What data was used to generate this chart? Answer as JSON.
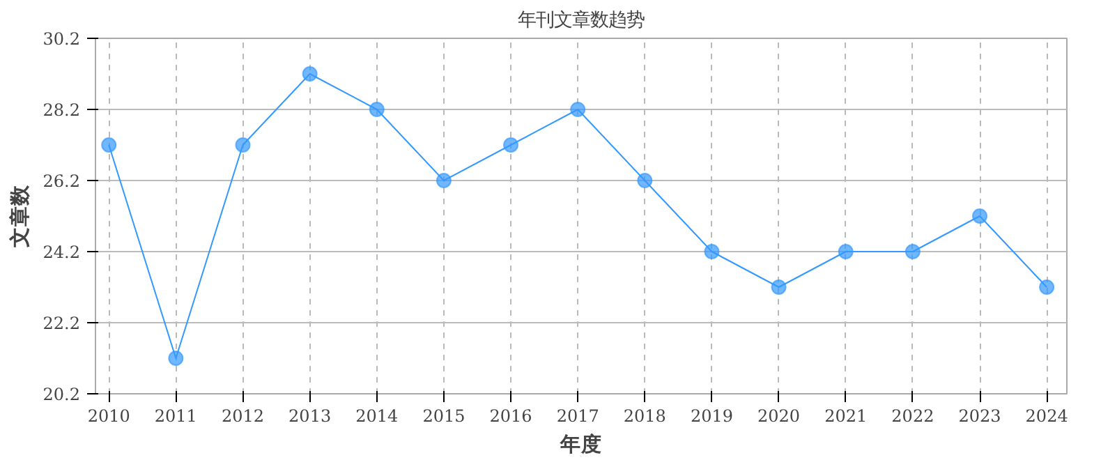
{
  "chart_data": {
    "type": "line",
    "title": "年刊文章数趋势",
    "xlabel": "年度",
    "ylabel": "文章数",
    "categories": [
      "2010",
      "2011",
      "2012",
      "2013",
      "2014",
      "2015",
      "2016",
      "2017",
      "2018",
      "2019",
      "2020",
      "2021",
      "2022",
      "2023",
      "2024"
    ],
    "series": [
      {
        "color": "#3399ff",
        "values": [
          27.2,
          21.2,
          27.2,
          29.2,
          28.2,
          26.2,
          27.2,
          28.2,
          26.2,
          24.2,
          23.2,
          24.2,
          24.2,
          25.2,
          23.2
        ]
      }
    ],
    "ylim": [
      20.2,
      30.2
    ],
    "yticks": [
      20.2,
      22.2,
      24.2,
      26.2,
      28.2,
      30.2
    ],
    "grid": true,
    "marker": "circle",
    "line_style": "solid"
  }
}
